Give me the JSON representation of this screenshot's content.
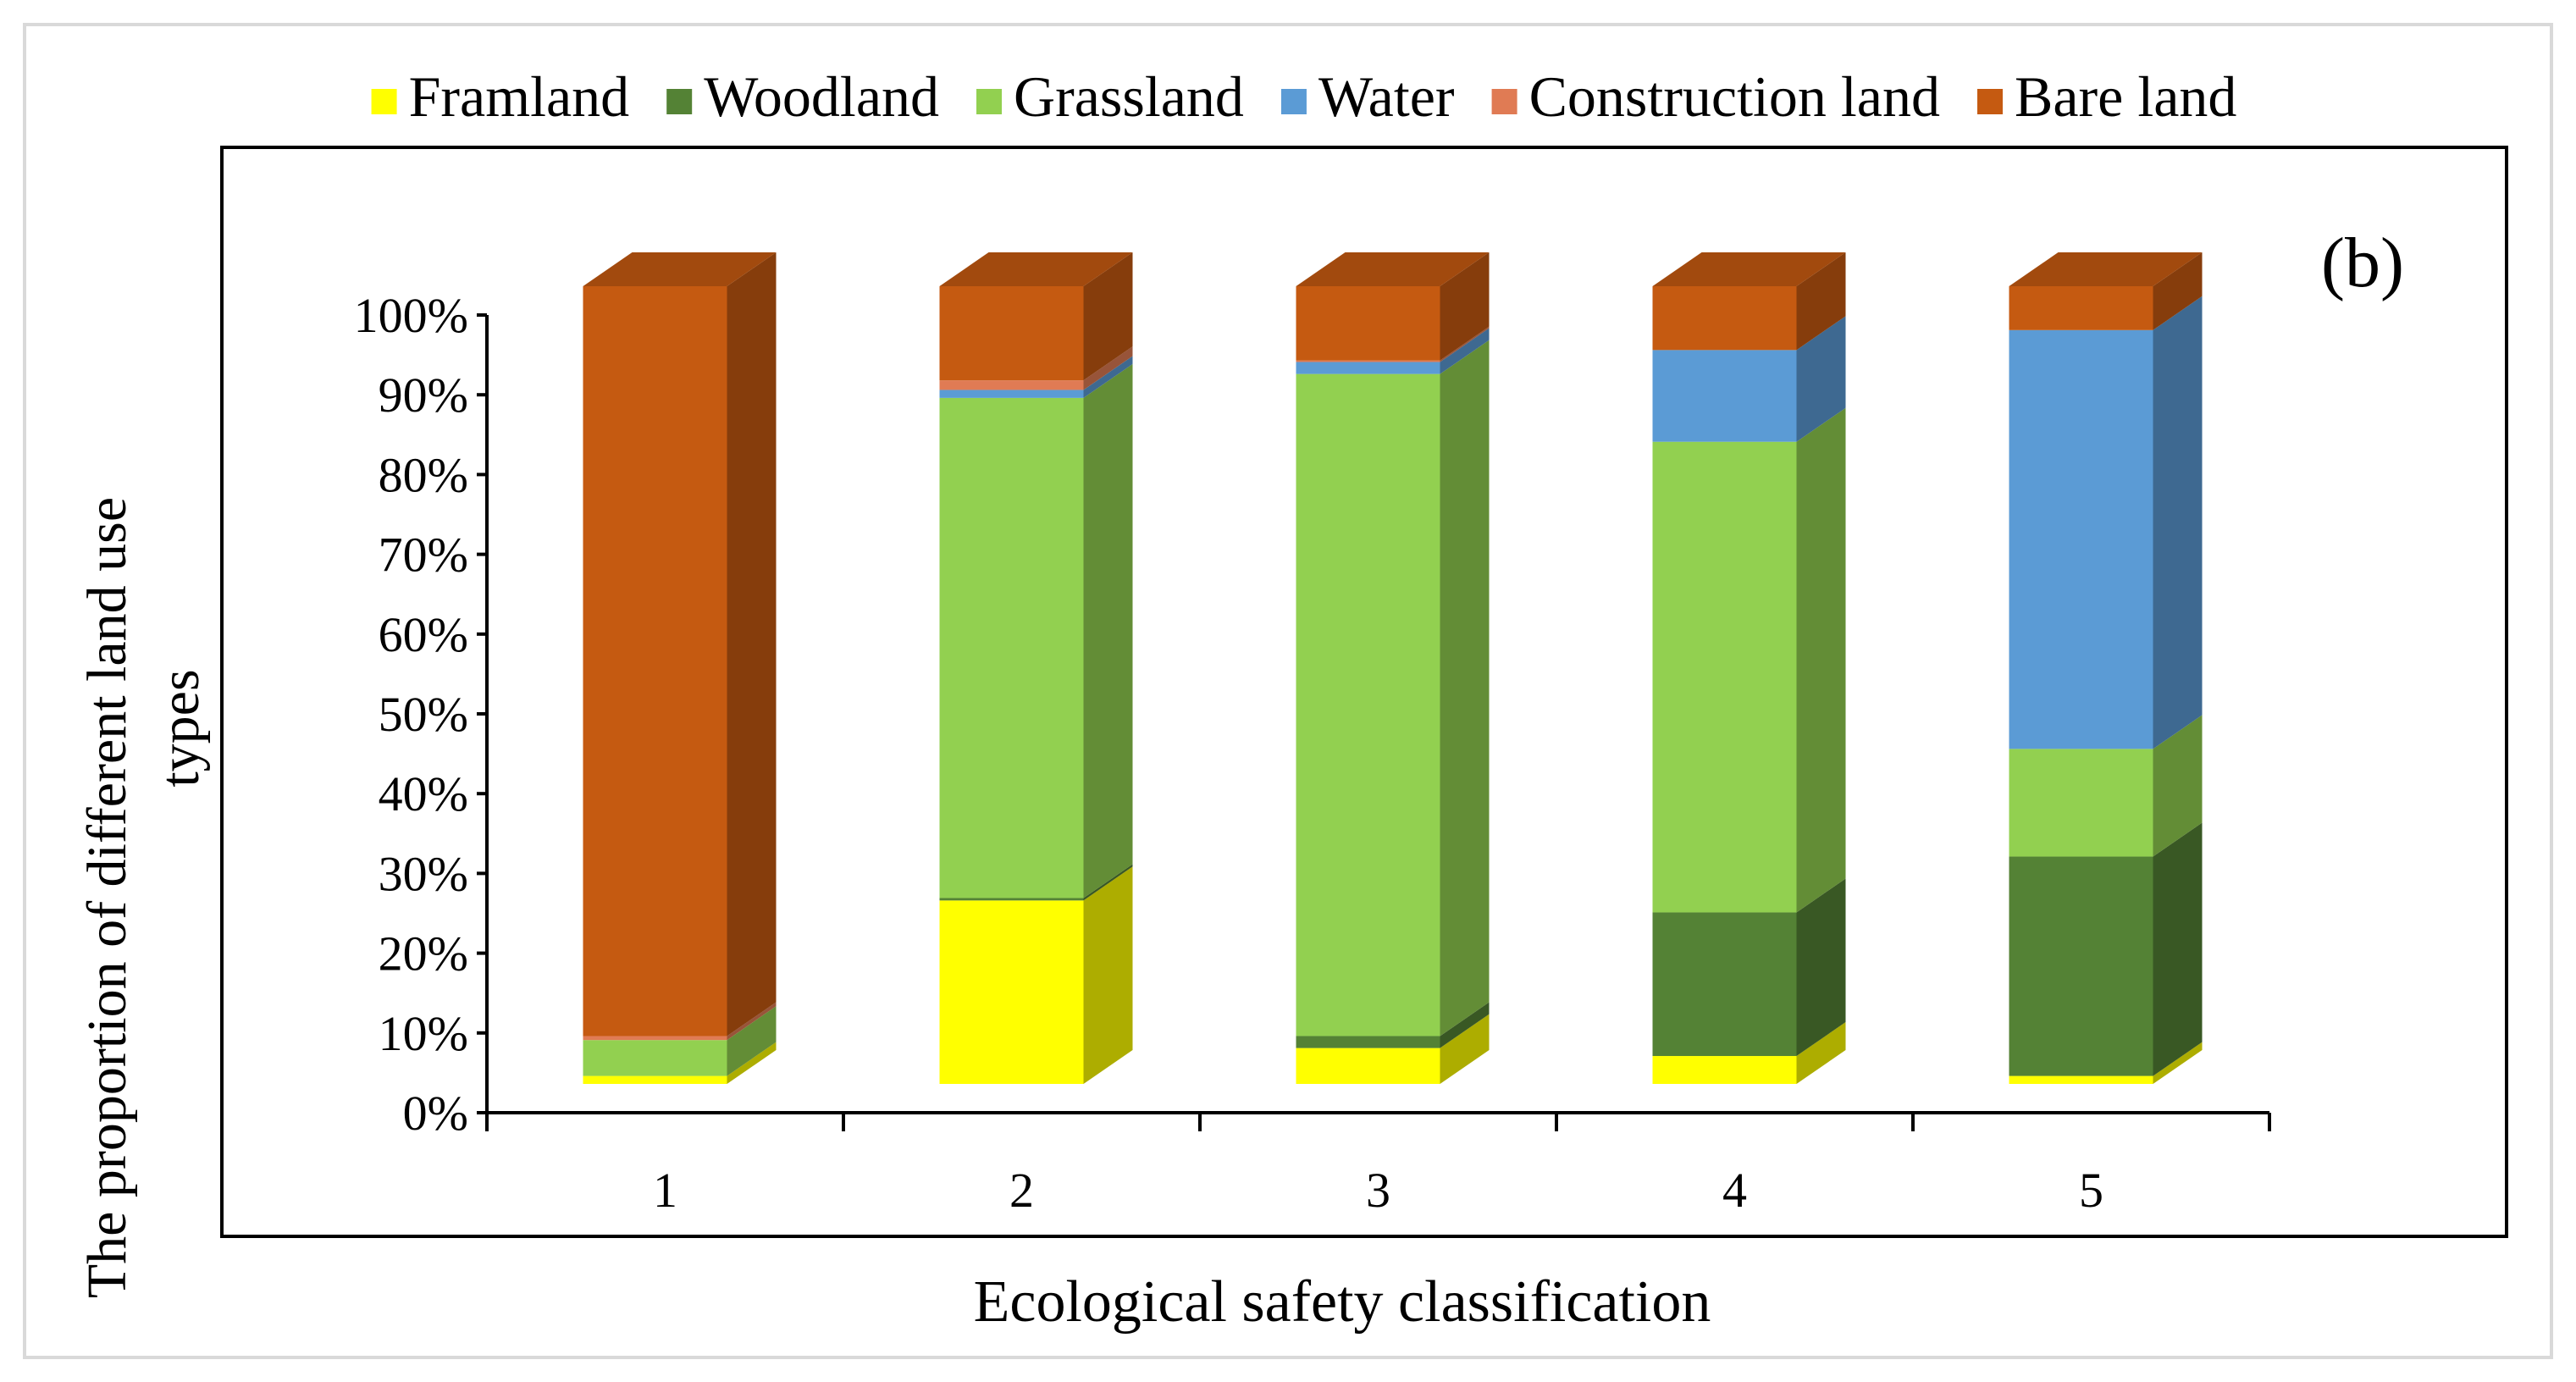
{
  "chart_data": {
    "type": "bar",
    "stacked": true,
    "three_d": true,
    "panel_label": "(b)",
    "title": "",
    "xlabel": "Ecological safety classification",
    "ylabel_lines": [
      "The proportion of different land use",
      "types"
    ],
    "categories": [
      "1",
      "2",
      "3",
      "4",
      "5"
    ],
    "ylim": [
      0,
      100
    ],
    "yticks": [
      0,
      10,
      20,
      30,
      40,
      50,
      60,
      70,
      80,
      90,
      100
    ],
    "ytick_suffix": "%",
    "legend_position": "top",
    "series": [
      {
        "name": "Framland",
        "color": "#ffff00",
        "values": [
          1,
          23,
          4.5,
          3.5,
          1
        ]
      },
      {
        "name": "Woodland",
        "color": "#548235",
        "values": [
          0,
          0.3,
          1.5,
          18,
          27.5
        ]
      },
      {
        "name": "Grassland",
        "color": "#92d050",
        "values": [
          4.5,
          62.7,
          83,
          59,
          13.5
        ]
      },
      {
        "name": "Water",
        "color": "#5b9bd5",
        "values": [
          0,
          1,
          1.5,
          11.5,
          52.5
        ]
      },
      {
        "name": "Construction land",
        "color": "#e07b54",
        "values": [
          0.5,
          1.2,
          0.2,
          0,
          0
        ]
      },
      {
        "name": "Bare land",
        "color": "#c55a11",
        "values": [
          94,
          11.8,
          9.3,
          8,
          5.5
        ]
      }
    ]
  }
}
